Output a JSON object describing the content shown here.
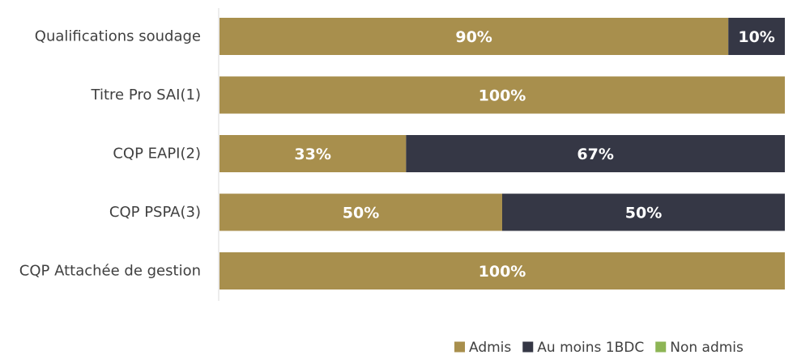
{
  "chart_data": {
    "type": "bar",
    "orientation": "horizontal",
    "stacked": true,
    "categories": [
      "Qualifications soudage",
      "Titre Pro SAI(1)",
      "CQP EAPI(2)",
      "CQP PSPA(3)",
      "CQP Attachée de gestion"
    ],
    "series": [
      {
        "name": "Admis",
        "color": "#A88F4D",
        "values": [
          90,
          100,
          33,
          50,
          100
        ],
        "labels": [
          "90%",
          "100%",
          "33%",
          "50%",
          "100%"
        ]
      },
      {
        "name": "Au moins 1BDC",
        "color": "#353745",
        "values": [
          10,
          0,
          67,
          50,
          0
        ],
        "labels": [
          "10%",
          "",
          "67%",
          "50%",
          ""
        ]
      },
      {
        "name": "Non admis",
        "color": "#8DB555",
        "values": [
          0,
          0,
          0,
          0,
          0
        ],
        "labels": [
          "",
          "",
          "",
          "",
          ""
        ]
      }
    ],
    "xlim": [
      0,
      100
    ],
    "grid": false,
    "legend_position": "bottom-right"
  }
}
